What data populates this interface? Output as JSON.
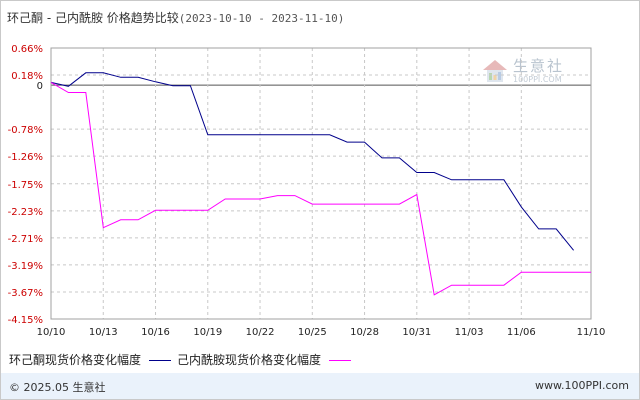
{
  "header": {
    "title": "环己酮 - 己内酰胺 价格趋势比较",
    "date_range": "(2023-10-10 - 2023-11-10)"
  },
  "watermark": {
    "name": "生意社",
    "site": "100PPI.COM",
    "icon": "house-logo-icon"
  },
  "footer": {
    "copyright": "© 2025.05 生意社",
    "site": "www.100PPI.com"
  },
  "colors": {
    "series1": "#00008b",
    "series2": "#ff00ff",
    "zero_tick": "#222222",
    "tick": "#cc0000",
    "grid": "#c8c8c8"
  },
  "chart_data": {
    "type": "line",
    "title": "环己酮 - 己内酰胺 价格趋势比较",
    "xlabel": "",
    "ylabel": "",
    "ylim": [
      -4.15,
      0.66
    ],
    "yticks": [
      0.66,
      0.18,
      0,
      -0.78,
      -1.26,
      -1.75,
      -2.23,
      -2.71,
      -3.19,
      -3.67,
      -4.15
    ],
    "ytick_labels": [
      "0.66%",
      "0.18%",
      "0",
      "-0.78%",
      "-1.26%",
      "-1.75%",
      "-2.23%",
      "-2.71%",
      "-3.19%",
      "-3.67%",
      "-4.15%"
    ],
    "xlim": [
      "2023-10-10",
      "2023-11-10"
    ],
    "xticks": [
      "2023-10-10",
      "2023-10-13",
      "2023-10-16",
      "2023-10-19",
      "2023-10-22",
      "2023-10-25",
      "2023-10-28",
      "2023-10-31",
      "2023-11-03",
      "2023-11-06",
      "2023-11-10"
    ],
    "xtick_labels": [
      "10/10",
      "10/13",
      "10/16",
      "10/19",
      "10/22",
      "10/25",
      "10/28",
      "10/31",
      "11/03",
      "11/06",
      "11/10"
    ],
    "grid": true,
    "legend_position": "bottom",
    "series": [
      {
        "name": "环己酮现货价格变化幅度",
        "points": [
          [
            "2023-10-10",
            0.05
          ],
          [
            "2023-10-11",
            -0.02
          ],
          [
            "2023-10-12",
            0.22
          ],
          [
            "2023-10-13",
            0.22
          ],
          [
            "2023-10-14",
            0.14
          ],
          [
            "2023-10-15",
            0.14
          ],
          [
            "2023-10-16",
            0.06
          ],
          [
            "2023-10-17",
            -0.01
          ],
          [
            "2023-10-18",
            -0.01
          ],
          [
            "2023-10-19",
            -0.88
          ],
          [
            "2023-10-20",
            -0.88
          ],
          [
            "2023-10-21",
            -0.88
          ],
          [
            "2023-10-22",
            -0.88
          ],
          [
            "2023-10-23",
            -0.88
          ],
          [
            "2023-10-24",
            -0.88
          ],
          [
            "2023-10-25",
            -0.88
          ],
          [
            "2023-10-26",
            -0.88
          ],
          [
            "2023-10-27",
            -1.01
          ],
          [
            "2023-10-28",
            -1.01
          ],
          [
            "2023-10-29",
            -1.29
          ],
          [
            "2023-10-30",
            -1.29
          ],
          [
            "2023-10-31",
            -1.55
          ],
          [
            "2023-11-01",
            -1.55
          ],
          [
            "2023-11-02",
            -1.68
          ],
          [
            "2023-11-03",
            -1.68
          ],
          [
            "2023-11-04",
            -1.68
          ],
          [
            "2023-11-05",
            -1.68
          ],
          [
            "2023-11-06",
            -2.16
          ],
          [
            "2023-11-07",
            -2.55
          ],
          [
            "2023-11-08",
            -2.55
          ],
          [
            "2023-11-09",
            -2.93
          ]
        ]
      },
      {
        "name": "己内酰胺现货价格变化幅度",
        "points": [
          [
            "2023-10-10",
            0.05
          ],
          [
            "2023-10-11",
            -0.13
          ],
          [
            "2023-10-12",
            -0.13
          ],
          [
            "2023-10-13",
            -2.53
          ],
          [
            "2023-10-14",
            -2.39
          ],
          [
            "2023-10-15",
            -2.39
          ],
          [
            "2023-10-16",
            -2.22
          ],
          [
            "2023-10-17",
            -2.22
          ],
          [
            "2023-10-18",
            -2.22
          ],
          [
            "2023-10-19",
            -2.22
          ],
          [
            "2023-10-20",
            -2.02
          ],
          [
            "2023-10-21",
            -2.02
          ],
          [
            "2023-10-22",
            -2.02
          ],
          [
            "2023-10-23",
            -1.96
          ],
          [
            "2023-10-24",
            -1.96
          ],
          [
            "2023-10-25",
            -2.11
          ],
          [
            "2023-10-26",
            -2.11
          ],
          [
            "2023-10-27",
            -2.11
          ],
          [
            "2023-10-28",
            -2.11
          ],
          [
            "2023-10-29",
            -2.11
          ],
          [
            "2023-10-30",
            -2.11
          ],
          [
            "2023-10-31",
            -1.94
          ],
          [
            "2023-11-01",
            -3.72
          ],
          [
            "2023-11-02",
            -3.55
          ],
          [
            "2023-11-03",
            -3.55
          ],
          [
            "2023-11-04",
            -3.55
          ],
          [
            "2023-11-05",
            -3.55
          ],
          [
            "2023-11-06",
            -3.32
          ],
          [
            "2023-11-07",
            -3.32
          ],
          [
            "2023-11-08",
            -3.32
          ],
          [
            "2023-11-09",
            -3.32
          ],
          [
            "2023-11-10",
            -3.32
          ]
        ]
      }
    ]
  }
}
